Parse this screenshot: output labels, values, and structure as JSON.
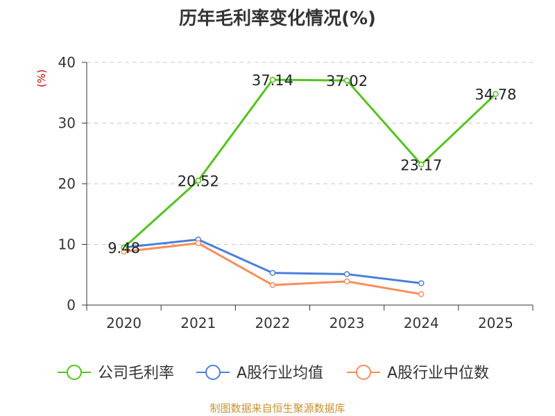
{
  "chart_data": {
    "type": "line",
    "title": "历年毛利率变化情况(%)",
    "unit_label": "(%)",
    "categories": [
      "2020",
      "2021",
      "2022",
      "2023",
      "2024",
      "2025"
    ],
    "ylim": [
      0,
      40
    ],
    "yticks": [
      0,
      10,
      20,
      30,
      40
    ],
    "grid": true,
    "legend_position": "bottom",
    "series": [
      {
        "name": "公司毛利率",
        "color": "#52c41a",
        "values": [
          9.48,
          20.52,
          37.14,
          37.02,
          23.17,
          34.78
        ],
        "labels": [
          "9.48",
          "20.52",
          "37.14",
          "37.02",
          "23.17",
          "34.78"
        ]
      },
      {
        "name": "A股行业均值",
        "color": "#4a7fd9",
        "values": [
          9.5,
          10.8,
          5.3,
          5.1,
          3.6,
          null
        ]
      },
      {
        "name": "A股行业中位数",
        "color": "#fa8c5a",
        "values": [
          8.8,
          10.2,
          3.3,
          3.9,
          1.8,
          null
        ]
      }
    ]
  },
  "source": "制图数据来自恒生聚源数据库"
}
